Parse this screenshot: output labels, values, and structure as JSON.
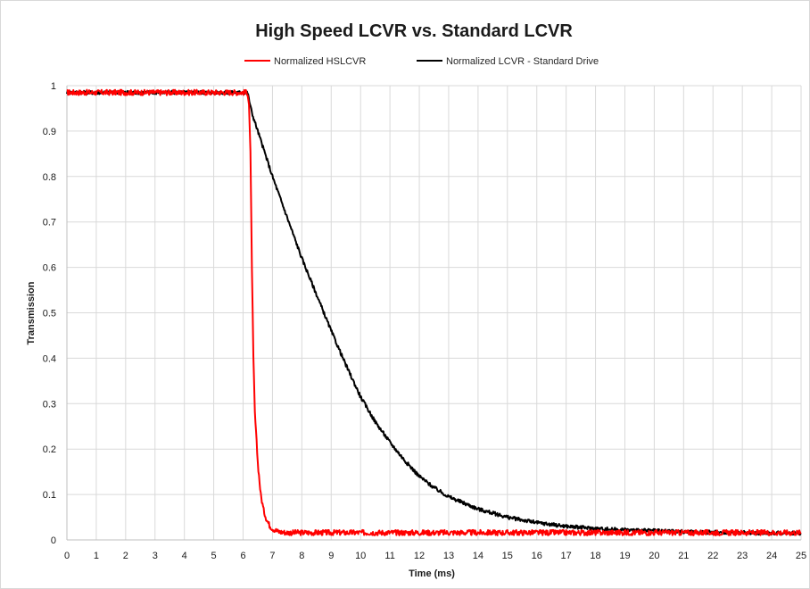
{
  "chart_data": {
    "type": "line",
    "title": "High Speed LCVR vs. Standard LCVR",
    "xlabel": "Time (ms)",
    "ylabel": "Transmission",
    "xlim": [
      0,
      25
    ],
    "ylim": [
      0,
      1
    ],
    "x_ticks": [
      "0",
      "1",
      "2",
      "3",
      "4",
      "5",
      "6",
      "7",
      "8",
      "9",
      "10",
      "11",
      "12",
      "13",
      "14",
      "15",
      "16",
      "17",
      "18",
      "19",
      "20",
      "21",
      "22",
      "23",
      "24",
      "25"
    ],
    "y_ticks": [
      "0",
      "0.1",
      "0.2",
      "0.3",
      "0.4",
      "0.5",
      "0.6",
      "0.7",
      "0.8",
      "0.9",
      "1"
    ],
    "grid": true,
    "legend_position": "top",
    "series": [
      {
        "name": "Normalized HSLCVR",
        "color": "#ff0000",
        "x": [
          0,
          1,
          2,
          3,
          4,
          5,
          6,
          6.15,
          6.2,
          6.25,
          6.3,
          6.35,
          6.4,
          6.5,
          6.6,
          6.7,
          6.8,
          6.9,
          7.0,
          7.2,
          7.5,
          8,
          9,
          10,
          12,
          14,
          16,
          18,
          20,
          22,
          24,
          25
        ],
        "y": [
          0.985,
          0.985,
          0.985,
          0.985,
          0.985,
          0.985,
          0.985,
          0.985,
          0.96,
          0.85,
          0.6,
          0.4,
          0.28,
          0.17,
          0.1,
          0.065,
          0.045,
          0.032,
          0.025,
          0.018,
          0.016,
          0.016,
          0.016,
          0.016,
          0.016,
          0.016,
          0.016,
          0.016,
          0.016,
          0.016,
          0.016,
          0.016
        ]
      },
      {
        "name": "Normalized LCVR - Standard Drive",
        "color": "#000000",
        "x": [
          0,
          1,
          2,
          3,
          4,
          5,
          6,
          6.15,
          6.3,
          6.5,
          7,
          7.5,
          8,
          8.5,
          9,
          9.5,
          10,
          10.5,
          11,
          11.5,
          12,
          12.5,
          13,
          14,
          15,
          16,
          17,
          18,
          19,
          20,
          21,
          22,
          23,
          24,
          25
        ],
        "y": [
          0.985,
          0.985,
          0.985,
          0.985,
          0.985,
          0.985,
          0.985,
          0.985,
          0.94,
          0.9,
          0.8,
          0.71,
          0.62,
          0.54,
          0.46,
          0.385,
          0.315,
          0.26,
          0.215,
          0.175,
          0.14,
          0.115,
          0.095,
          0.068,
          0.05,
          0.038,
          0.03,
          0.025,
          0.022,
          0.02,
          0.018,
          0.017,
          0.016,
          0.015,
          0.015
        ]
      }
    ]
  }
}
